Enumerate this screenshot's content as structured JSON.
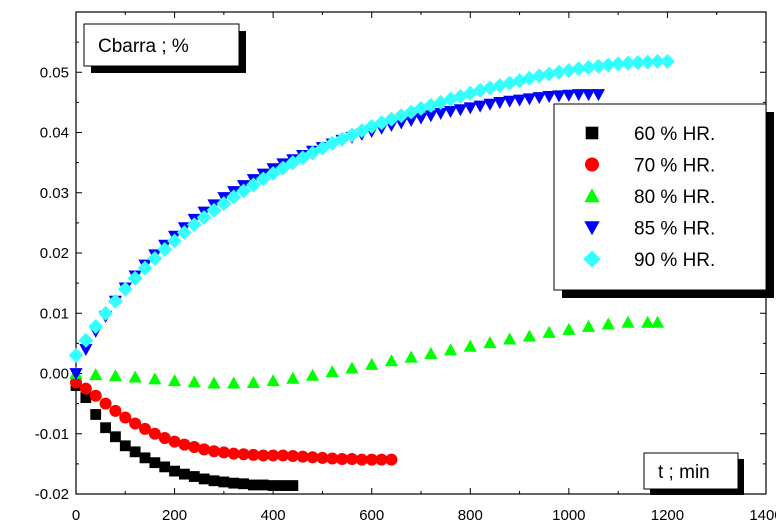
{
  "chart_data": {
    "type": "scatter",
    "title": "",
    "ylabel": "Cbarra ; %",
    "xlabel": "t ; min",
    "xlim": [
      0,
      1400
    ],
    "ylim": [
      -0.02,
      0.06
    ],
    "xticks": [
      0,
      200,
      400,
      600,
      800,
      1000,
      1200,
      1400
    ],
    "yticks": [
      -0.02,
      -0.01,
      0.0,
      0.01,
      0.02,
      0.03,
      0.04,
      0.05
    ],
    "ytick_labels": [
      "-0.02",
      "-0.01",
      "0.00",
      "0.01",
      "0.02",
      "0.03",
      "0.04",
      "0.05"
    ],
    "grid": false,
    "legend_position": "top-right",
    "series": [
      {
        "name": "60 % HR.",
        "marker": "square",
        "color": "#000000",
        "x": [
          0,
          20,
          40,
          60,
          80,
          100,
          120,
          140,
          160,
          180,
          200,
          220,
          240,
          260,
          280,
          300,
          320,
          340,
          360,
          380,
          400,
          420,
          440
        ],
        "y": [
          -0.002,
          -0.004,
          -0.0068,
          -0.009,
          -0.0105,
          -0.012,
          -0.013,
          -0.014,
          -0.0148,
          -0.0155,
          -0.0162,
          -0.0167,
          -0.0171,
          -0.0175,
          -0.0178,
          -0.018,
          -0.0182,
          -0.0183,
          -0.0185,
          -0.0185,
          -0.0186,
          -0.0186,
          -0.0186
        ]
      },
      {
        "name": "70 % HR.",
        "marker": "circle",
        "color": "#ff0000",
        "x": [
          0,
          20,
          40,
          60,
          80,
          100,
          120,
          140,
          160,
          180,
          200,
          220,
          240,
          260,
          280,
          300,
          320,
          340,
          360,
          380,
          400,
          420,
          440,
          460,
          480,
          500,
          520,
          540,
          560,
          580,
          600,
          620,
          640
        ],
        "y": [
          -0.0015,
          -0.0025,
          -0.0037,
          -0.005,
          -0.0062,
          -0.0073,
          -0.0083,
          -0.0092,
          -0.01,
          -0.0107,
          -0.0113,
          -0.0118,
          -0.0122,
          -0.0126,
          -0.0129,
          -0.0131,
          -0.0133,
          -0.0134,
          -0.0135,
          -0.0136,
          -0.0136,
          -0.0136,
          -0.0137,
          -0.0138,
          -0.0139,
          -0.014,
          -0.0141,
          -0.0142,
          -0.0142,
          -0.0143,
          -0.0143,
          -0.0143,
          -0.0143
        ]
      },
      {
        "name": "80 % HR.",
        "marker": "triangle-up",
        "color": "#00ff00",
        "x": [
          0,
          40,
          80,
          120,
          160,
          200,
          240,
          280,
          320,
          360,
          400,
          440,
          480,
          520,
          560,
          600,
          640,
          680,
          720,
          760,
          800,
          840,
          880,
          920,
          960,
          1000,
          1040,
          1080,
          1120,
          1160,
          1180
        ],
        "y": [
          0.0,
          -0.0002,
          -0.0004,
          -0.0006,
          -0.0009,
          -0.0012,
          -0.0014,
          -0.0016,
          -0.0016,
          -0.0015,
          -0.0012,
          -0.0008,
          -0.0003,
          0.0003,
          0.0009,
          0.0015,
          0.0021,
          0.0027,
          0.0033,
          0.0039,
          0.0045,
          0.0051,
          0.0057,
          0.0062,
          0.0068,
          0.0073,
          0.0078,
          0.0082,
          0.0085,
          0.0085,
          0.0085
        ]
      },
      {
        "name": "85 % HR.",
        "marker": "triangle-down",
        "color": "#0000ff",
        "x": [
          0,
          20,
          40,
          60,
          80,
          100,
          120,
          140,
          160,
          180,
          200,
          220,
          240,
          260,
          280,
          300,
          320,
          340,
          360,
          380,
          400,
          420,
          440,
          460,
          480,
          500,
          520,
          540,
          560,
          580,
          600,
          620,
          640,
          660,
          680,
          700,
          720,
          740,
          760,
          780,
          800,
          820,
          840,
          860,
          880,
          900,
          920,
          940,
          960,
          980,
          1000,
          1020,
          1040,
          1060
        ],
        "y": [
          0.0,
          0.004,
          0.007,
          0.0095,
          0.012,
          0.0142,
          0.0162,
          0.018,
          0.0197,
          0.0213,
          0.0228,
          0.0242,
          0.0256,
          0.0268,
          0.028,
          0.0292,
          0.0302,
          0.0312,
          0.0322,
          0.0331,
          0.034,
          0.0348,
          0.0355,
          0.0362,
          0.0369,
          0.0375,
          0.0381,
          0.0387,
          0.0392,
          0.0397,
          0.0402,
          0.0407,
          0.0412,
          0.0416,
          0.042,
          0.0424,
          0.0428,
          0.0432,
          0.0435,
          0.0438,
          0.0441,
          0.0444,
          0.0447,
          0.045,
          0.0452,
          0.0454,
          0.0456,
          0.0458,
          0.046,
          0.0461,
          0.0462,
          0.0463,
          0.0463,
          0.0463
        ]
      },
      {
        "name": "90 % HR.",
        "marker": "diamond",
        "color": "#33ffff",
        "x": [
          0,
          20,
          40,
          60,
          80,
          100,
          120,
          140,
          160,
          180,
          200,
          220,
          240,
          260,
          280,
          300,
          320,
          340,
          360,
          380,
          400,
          420,
          440,
          460,
          480,
          500,
          520,
          540,
          560,
          580,
          600,
          620,
          640,
          660,
          680,
          700,
          720,
          740,
          760,
          780,
          800,
          820,
          840,
          860,
          880,
          900,
          920,
          940,
          960,
          980,
          1000,
          1020,
          1040,
          1060,
          1080,
          1100,
          1120,
          1140,
          1160,
          1180,
          1200
        ],
        "y": [
          0.003,
          0.0055,
          0.0078,
          0.01,
          0.012,
          0.014,
          0.0158,
          0.0175,
          0.0191,
          0.0206,
          0.022,
          0.0234,
          0.0247,
          0.0259,
          0.0271,
          0.0282,
          0.0293,
          0.0303,
          0.0313,
          0.0323,
          0.0332,
          0.0341,
          0.035,
          0.0358,
          0.0366,
          0.0374,
          0.0382,
          0.0389,
          0.0396,
          0.0403,
          0.041,
          0.0416,
          0.0422,
          0.0428,
          0.0434,
          0.044,
          0.0445,
          0.045,
          0.0455,
          0.046,
          0.0465,
          0.047,
          0.0474,
          0.0478,
          0.0482,
          0.0486,
          0.049,
          0.0494,
          0.0497,
          0.05,
          0.0503,
          0.0506,
          0.0508,
          0.051,
          0.0512,
          0.0514,
          0.0515,
          0.0516,
          0.0517,
          0.0518,
          0.0518
        ]
      }
    ]
  }
}
